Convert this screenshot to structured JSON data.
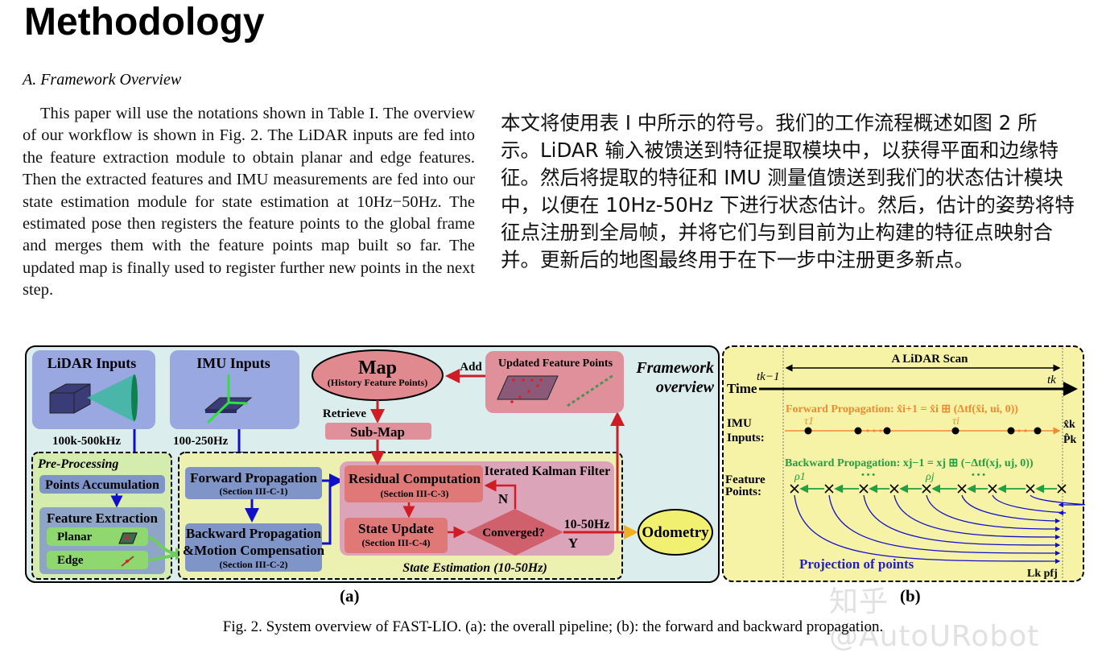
{
  "page_title": "Methodology",
  "section_heading": "A. Framework Overview",
  "english_paragraph": "This paper will use the notations shown in Table I. The overview of our workflow is shown in Fig. 2. The LiDAR inputs are fed into the feature extraction module to obtain planar and edge features. Then the extracted features and IMU measurements are fed into our state estimation module for state estimation at 10Hz−50Hz. The estimated pose then registers the feature points to the global frame and merges them with the feature points map built so far. The updated map is finally used to register further new points in the next step.",
  "chinese_paragraph": "本文将使用表 I 中所示的符号。我们的工作流程概述如图 2 所示。LiDAR 输入被馈送到特征提取模块中，以获得平面和边缘特征。然后将提取的特征和 IMU 测量值馈送到我们的状态估计模块中，以便在 10Hz-50Hz 下进行状态估计。然后，估计的姿势将特征点注册到全局帧，并将它们与到目前为止构建的特征点映射合并。更新后的地图最终用于在下一步中注册更多新点。",
  "figure": {
    "panel_a": {
      "label": "(a)",
      "lidar_inputs": "LiDAR Inputs",
      "lidar_rate": "100k-500kHz",
      "imu_inputs": "IMU Inputs",
      "imu_rate": "100-250Hz",
      "pre_processing": "Pre-Processing",
      "points_accumulation": "Points Accumulation",
      "feature_extraction": "Feature Extraction",
      "planar": "Planar",
      "edge": "Edge",
      "forward_propagation": "Forward Propagation",
      "forward_section": "(Section III-C-1)",
      "backward_propagation_1": "Backward Propagation",
      "backward_propagation_2": "&Motion Compensation",
      "backward_section": "(Section III-C-2)",
      "map": "Map",
      "map_sub": "(History Feature Points)",
      "add": "Add",
      "updated_feature_points": "Updated Feature Points",
      "framework_1": "Framework",
      "framework_2": "overview",
      "retrieve": "Retrieve",
      "sub_map": "Sub-Map",
      "ikf": "Iterated Kalman Filter",
      "residual": "Residual Computation",
      "residual_section": "(Section III-C-3)",
      "state_update": "State Update",
      "state_update_section": "(Section III-C-4)",
      "converged": "Converged?",
      "no": "N",
      "yes": "Y",
      "output_rate": "10-50Hz",
      "odometry": "Odometry",
      "state_estimation": "State Estimation (10-50Hz)"
    },
    "panel_b": {
      "label": "(b)",
      "lidar_scan": "A LiDAR Scan",
      "time": "Time",
      "t_prev": "tk−1",
      "t_k": "tk",
      "forward_eq": "Forward Propagation:  x̂i+1 = x̂i ⊞ (Δtf(x̂i, ui, 0))",
      "imu_1": "IMU",
      "imu_2": "Inputs:",
      "tau_1": "τ1",
      "tau_i": "τi",
      "x_hat_k": "x̂k",
      "p_hat_k": "P̂k",
      "backward_eq": "Backward Propagation: xj−1 = xj ⊞ (−Δtf(xj, uj, 0))",
      "feature_1": "Feature",
      "feature_2": "Points:",
      "rho_1": "ρ1",
      "rho_j": "ρj",
      "ellipsis": "• • •",
      "projection": "Projection of points",
      "projected_point": "Lk pfj"
    },
    "caption": "Fig. 2.   System overview of FAST-LIO. (a): the overall pipeline; (b): the forward and backward propagation."
  },
  "watermark": "知乎 @AutoURobot",
  "colors": {
    "blue_box": "#9aa8e2",
    "red_box": "#e0868e",
    "green_box": "#d4ecae",
    "yellow_panel": "#f7f3a6",
    "arrow_blue": "#1010c8",
    "arrow_red": "#d01c24",
    "orange": "#f08a30",
    "green": "#20a040"
  }
}
